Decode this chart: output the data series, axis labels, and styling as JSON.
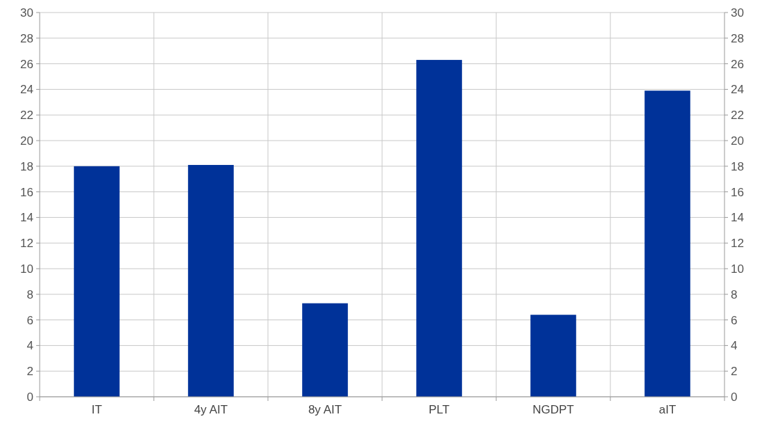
{
  "chart_data": {
    "type": "bar",
    "categories": [
      "IT",
      "4y AIT",
      "8y AIT",
      "PLT",
      "NGDPT",
      "aIT"
    ],
    "values": [
      18.0,
      18.1,
      7.3,
      26.3,
      6.4,
      23.9
    ],
    "color": "#003299",
    "ylim": [
      0,
      30
    ],
    "yticks": [
      0,
      2,
      4,
      6,
      8,
      10,
      12,
      14,
      16,
      18,
      20,
      22,
      24,
      26,
      28,
      30
    ],
    "y2lim": [
      0,
      30
    ],
    "y2ticks": [
      0,
      2,
      4,
      6,
      8,
      10,
      12,
      14,
      16,
      18,
      20,
      22,
      24,
      26,
      28,
      30
    ],
    "grid": true
  }
}
